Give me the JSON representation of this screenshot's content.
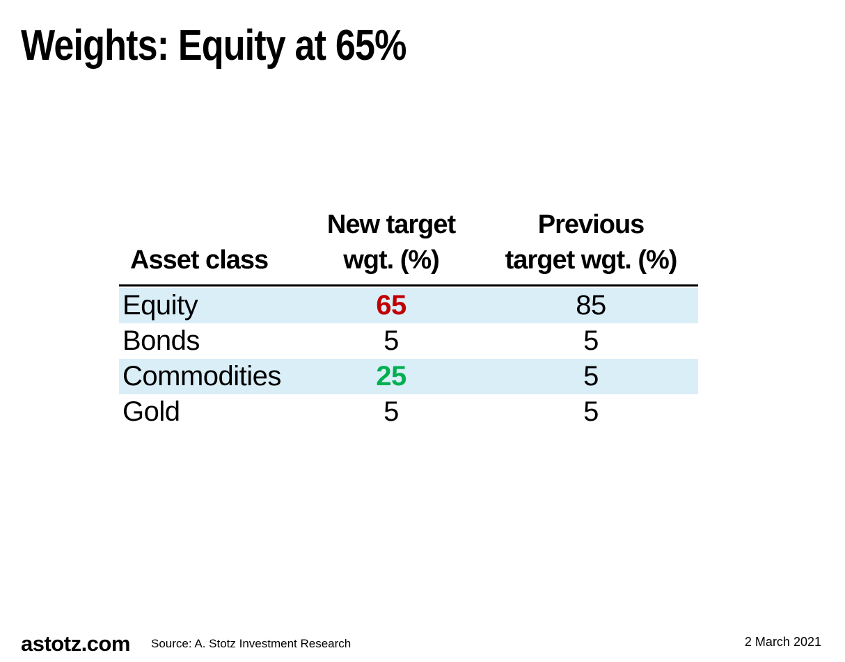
{
  "slide": {
    "title": "Weights: Equity at 65%"
  },
  "table": {
    "header": {
      "asset_class": "Asset class",
      "new_target_line1": "New target",
      "new_target_line2": "wgt. (%)",
      "previous_line1": "Previous",
      "previous_line2": "target wgt. (%)"
    },
    "rows": [
      {
        "asset_class": "Equity",
        "new_target_wgt_pct": "65",
        "previous_target_wgt_pct": "85",
        "highlighted": true,
        "new_target_color": "#C00000"
      },
      {
        "asset_class": "Bonds",
        "new_target_wgt_pct": "5",
        "previous_target_wgt_pct": "5",
        "highlighted": false
      },
      {
        "asset_class": "Commodities",
        "new_target_wgt_pct": "25",
        "previous_target_wgt_pct": "5",
        "highlighted": true,
        "new_target_color": "#00B050"
      },
      {
        "asset_class": "Gold",
        "new_target_wgt_pct": "5",
        "previous_target_wgt_pct": "5",
        "highlighted": false
      }
    ],
    "colors": {
      "highlight_row_bg": "#DAEEF8",
      "new_target_decrease_red": "#C00000",
      "new_target_increase_green": "#00B050"
    }
  },
  "footer": {
    "brand": "astotz.com",
    "source": "Source: A. Stotz Investment Research",
    "date": "2 March 2021"
  }
}
